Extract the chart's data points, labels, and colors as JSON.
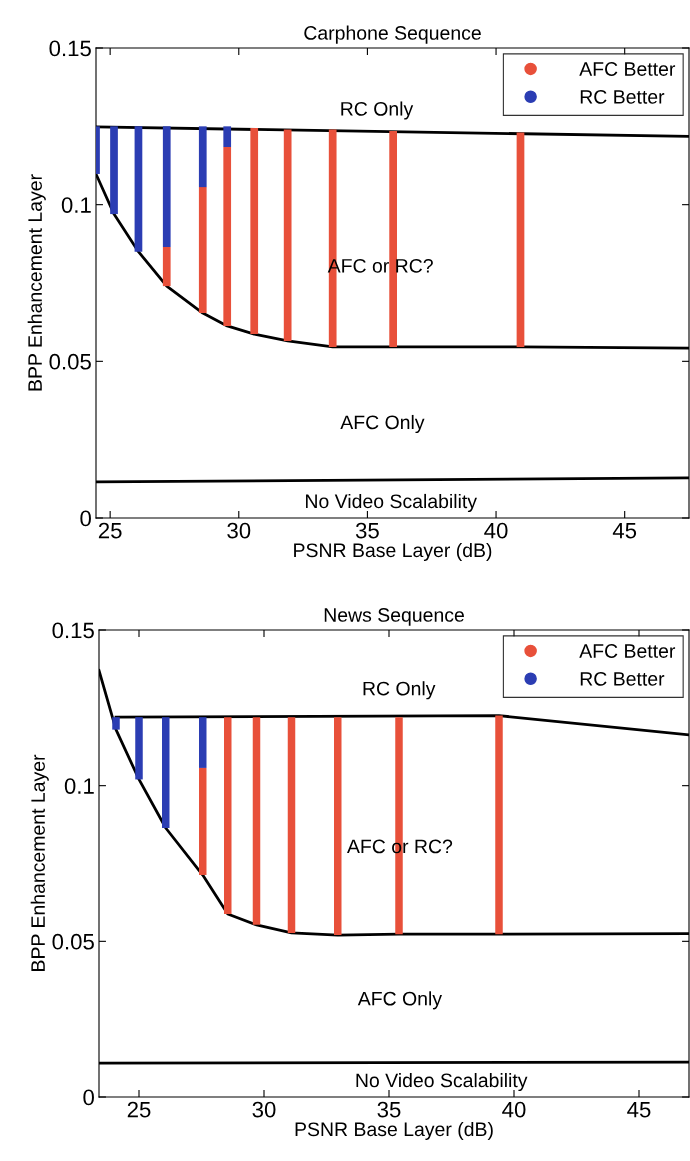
{
  "chart_data": [
    {
      "type": "bar",
      "title": "Carphone Sequence",
      "xlabel": "PSNR Base Layer (dB)",
      "ylabel": "BPP Enhancement Layer",
      "xlim": [
        24.45,
        47.5
      ],
      "ylim": [
        0,
        0.15
      ],
      "xticks": [
        25,
        30,
        35,
        40,
        45
      ],
      "yticks": [
        0,
        0.05,
        0.1,
        0.15
      ],
      "legend": "top right",
      "series": [
        {
          "name": "AFC Better",
          "marker": "circle",
          "color": "#e8503a",
          "x": [
            27.2,
            28.6,
            29.55,
            30.6,
            31.9,
            33.65,
            36.0,
            40.95
          ],
          "base": [
            0.074,
            0.0654,
            0.0613,
            0.0587,
            0.0565,
            0.0546,
            0.0546,
            0.0546
          ],
          "values": [
            0.0125,
            0.0402,
            0.0571,
            0.0658,
            0.0675,
            0.0694,
            0.0689,
            0.0684
          ]
        },
        {
          "name": "RC Better",
          "marker": "circle",
          "color": "#2b3db3",
          "x": [
            24.45,
            25.15,
            26.1,
            27.2,
            28.6,
            29.55
          ],
          "base": [
            0.1098,
            0.097,
            0.085,
            0.0865,
            0.1056,
            0.1184
          ],
          "values": [
            0.0152,
            0.028,
            0.04,
            0.0385,
            0.0194,
            0.0066
          ]
        },
        {
          "type": "line",
          "color": "#000000",
          "x": [
            24.45,
            47.5
          ],
          "values": [
            0.1248,
            0.1218
          ]
        },
        {
          "type": "line",
          "color": "#000000",
          "x": [
            24.45,
            25.15,
            26.1,
            27.2,
            28.6,
            29.55,
            30.6,
            31.9,
            33.65,
            36.0,
            40.95,
            47.5
          ],
          "values": [
            0.1098,
            0.097,
            0.085,
            0.074,
            0.0654,
            0.0613,
            0.0587,
            0.0565,
            0.0546,
            0.0546,
            0.0546,
            0.0542
          ]
        },
        {
          "type": "line",
          "color": "#000000",
          "x": [
            24.45,
            47.5
          ],
          "values": [
            0.0115,
            0.0128
          ]
        }
      ],
      "annotations": [
        "RC Only",
        "AFC or RC?",
        "AFC Only",
        "No Video Scalability"
      ]
    },
    {
      "type": "bar",
      "title": "News Sequence",
      "xlabel": "PSNR Base Layer (dB)",
      "ylabel": "BPP Enhancement Layer",
      "xlim": [
        23.4,
        47.0
      ],
      "ylim": [
        0,
        0.15
      ],
      "xticks": [
        25,
        30,
        35,
        40,
        45
      ],
      "yticks": [
        0,
        0.05,
        0.1,
        0.15
      ],
      "legend": "top right",
      "series": [
        {
          "name": "AFC Better",
          "marker": "circle",
          "color": "#e8503a",
          "x": [
            27.55,
            28.55,
            29.7,
            31.1,
            32.95,
            35.4,
            39.4
          ],
          "base": [
            0.0713,
            0.0588,
            0.0553,
            0.0527,
            0.052,
            0.0523,
            0.0523
          ],
          "values": [
            0.0344,
            0.0632,
            0.0667,
            0.0693,
            0.07,
            0.0697,
            0.0702
          ]
        },
        {
          "name": "RC Better",
          "marker": "circle",
          "color": "#2b3db3",
          "x": [
            24.08,
            25.0,
            26.07,
            27.55
          ],
          "base": [
            0.118,
            0.102,
            0.0864,
            0.1057
          ],
          "values": [
            0.004,
            0.02,
            0.0356,
            0.0163
          ]
        },
        {
          "type": "line",
          "color": "#000000",
          "x": [
            24.08,
            39.4,
            47.0
          ],
          "values": [
            0.122,
            0.1225,
            0.1163
          ]
        },
        {
          "type": "line",
          "color": "#000000",
          "x": [
            23.4,
            24.08,
            25.0,
            26.07,
            27.55,
            28.55,
            29.7,
            31.1,
            32.95,
            35.4,
            39.4,
            47.0
          ],
          "values": [
            0.137,
            0.118,
            0.102,
            0.0864,
            0.0713,
            0.0588,
            0.0553,
            0.0527,
            0.052,
            0.0523,
            0.0523,
            0.0525
          ]
        },
        {
          "type": "line",
          "color": "#000000",
          "x": [
            23.4,
            47.0
          ],
          "values": [
            0.0109,
            0.0112
          ]
        }
      ],
      "annotations": [
        "RC Only",
        "AFC or RC?",
        "AFC Only",
        "No Video Scalability"
      ]
    }
  ]
}
